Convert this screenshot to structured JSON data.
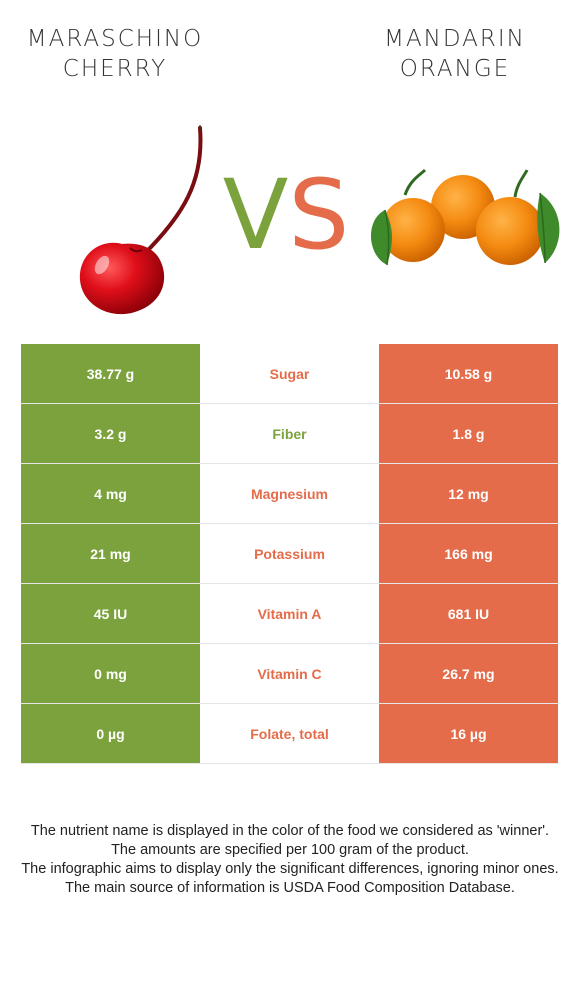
{
  "left_food": {
    "line1": "MARASCHINO",
    "line2": "CHERRY",
    "color": "#7ca23d"
  },
  "right_food": {
    "line1": "MANDARIN",
    "line2": "ORANGE",
    "color": "#e46c4a"
  },
  "vs": {
    "v": "V",
    "s": "S"
  },
  "rows": [
    {
      "left": "38.77 g",
      "nutrient": "Sugar",
      "right": "10.58 g",
      "winner": "right",
      "winner_color": "#e46c4a"
    },
    {
      "left": "3.2 g",
      "nutrient": "Fiber",
      "right": "1.8 g",
      "winner": "left",
      "winner_color": "#7ca23d"
    },
    {
      "left": "4 mg",
      "nutrient": "Magnesium",
      "right": "12 mg",
      "winner": "right",
      "winner_color": "#e46c4a"
    },
    {
      "left": "21 mg",
      "nutrient": "Potassium",
      "right": "166 mg",
      "winner": "right",
      "winner_color": "#e46c4a"
    },
    {
      "left": "45 IU",
      "nutrient": "Vitamin A",
      "right": "681 IU",
      "winner": "right",
      "winner_color": "#e46c4a"
    },
    {
      "left": "0 mg",
      "nutrient": "Vitamin C",
      "right": "26.7 mg",
      "winner": "right",
      "winner_color": "#e46c4a"
    },
    {
      "left": "0 µg",
      "nutrient": "Folate, total",
      "right": "16 µg",
      "winner": "right",
      "winner_color": "#e46c4a"
    }
  ],
  "footer": [
    "The nutrient name is displayed in the color of the food we considered as 'winner'.",
    "The amounts are specified per 100 gram of the product.",
    "The infographic aims to display only the significant differences, ignoring minor ones.",
    "The main source of information is USDA Food Composition Database."
  ]
}
